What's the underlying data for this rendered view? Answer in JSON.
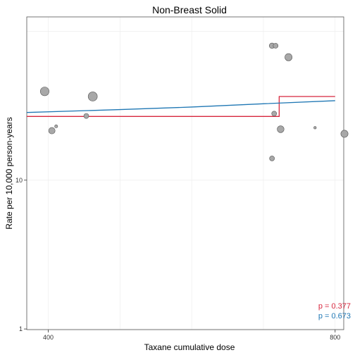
{
  "chart_data": {
    "type": "scatter",
    "title": "Non-Breast Solid",
    "xlabel": "Taxane cumulative dose",
    "ylabel": "Rate per 10,000 person-years",
    "x_scale": "linear",
    "y_scale": "log10",
    "xlim": [
      370,
      812
    ],
    "ylim": [
      0.99,
      125
    ],
    "x_ticks": [
      {
        "value": 400,
        "label": "400"
      },
      {
        "value": 800,
        "label": "800"
      }
    ],
    "y_ticks": [
      {
        "value": 1,
        "label": "1"
      },
      {
        "value": 10,
        "label": "10"
      }
    ],
    "grid": true,
    "points": [
      {
        "x": 395,
        "y": 39.5,
        "size": 4.6
      },
      {
        "x": 405,
        "y": 21.5,
        "size": 3.4
      },
      {
        "x": 411,
        "y": 23.0,
        "size": 1.6
      },
      {
        "x": 453,
        "y": 27.0,
        "size": 2.6
      },
      {
        "x": 462,
        "y": 36.5,
        "size": 4.8
      },
      {
        "x": 712,
        "y": 80.0,
        "size": 2.9
      },
      {
        "x": 717,
        "y": 80.0,
        "size": 2.6
      },
      {
        "x": 735,
        "y": 67.0,
        "size": 3.8
      },
      {
        "x": 715,
        "y": 28.0,
        "size": 2.6
      },
      {
        "x": 724,
        "y": 22.0,
        "size": 3.6
      },
      {
        "x": 712,
        "y": 14.0,
        "size": 2.6
      },
      {
        "x": 772,
        "y": 22.5,
        "size": 1.3
      },
      {
        "x": 813,
        "y": 20.5,
        "size": 3.8
      }
    ],
    "series": [
      {
        "name": "step",
        "color": "#d7263d",
        "type": "step",
        "x": [
          370,
          722,
          722,
          800
        ],
        "y": [
          26.8,
          26.8,
          36.5,
          36.5
        ]
      },
      {
        "name": "trend",
        "color": "#1f77b4",
        "type": "line",
        "x": [
          370,
          500,
          600,
          700,
          800
        ],
        "y": [
          28.5,
          29.8,
          31.0,
          32.6,
          34.2
        ]
      }
    ],
    "annotations": [
      {
        "text": "p = 0.377",
        "color": "#d7263d"
      },
      {
        "text": "p = 0.673",
        "color": "#1f77b4"
      }
    ]
  }
}
